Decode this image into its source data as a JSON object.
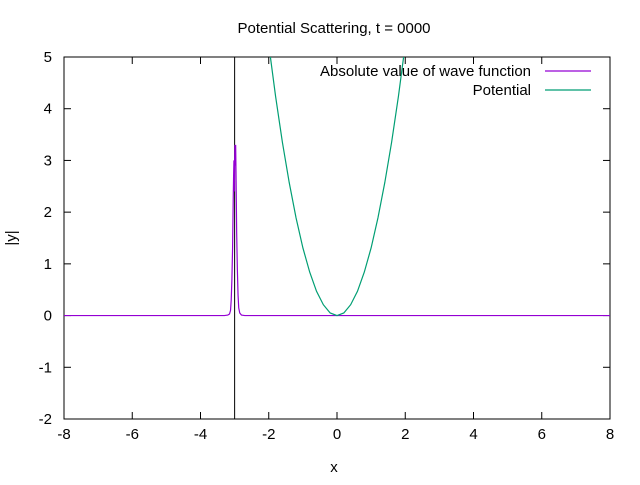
{
  "chart_data": {
    "type": "line",
    "title": "Potential Scattering, t = 0000",
    "xlabel": "x",
    "ylabel": "|y|",
    "xlim": [
      -8,
      8
    ],
    "ylim": [
      -2,
      5
    ],
    "xticks": [
      "-8",
      "-6",
      "-4",
      "-2",
      "0",
      "2",
      "4",
      "6",
      "8"
    ],
    "yticks": [
      "-2",
      "-1",
      "0",
      "1",
      "2",
      "3",
      "4",
      "5"
    ],
    "grid": false,
    "legend_position": "top-right",
    "vertical_marker_x": -3,
    "series": [
      {
        "name": "Absolute value of wave function",
        "color": "#9400d3",
        "x": [
          -8,
          -3.3,
          -3.2,
          -3.15,
          -3.12,
          -3.1,
          -3.08,
          -3.06,
          -3.05,
          -3.04,
          -3.03,
          -3.02,
          -3.01,
          -3.0,
          -2.99,
          -2.98,
          -2.97,
          -2.96,
          -2.95,
          -2.94,
          -2.92,
          -2.9,
          -2.88,
          -2.85,
          -2.8,
          -2.7,
          8
        ],
        "y": [
          0,
          0,
          0.01,
          0.03,
          0.1,
          0.3,
          0.7,
          1.3,
          1.8,
          2.3,
          2.7,
          3.0,
          2.4,
          3.0,
          3.3,
          2.9,
          3.3,
          2.8,
          2.2,
          1.6,
          0.9,
          0.4,
          0.15,
          0.05,
          0.01,
          0,
          0
        ]
      },
      {
        "name": "Potential",
        "color": "#009e73",
        "x": [
          -2.0,
          -1.8,
          -1.6,
          -1.4,
          -1.2,
          -1.0,
          -0.8,
          -0.6,
          -0.4,
          -0.2,
          0.0,
          0.2,
          0.4,
          0.6,
          0.8,
          1.0,
          1.2,
          1.4,
          1.6,
          1.8,
          2.0
        ],
        "y": [
          5.24,
          4.24,
          3.35,
          2.57,
          1.89,
          1.31,
          0.84,
          0.47,
          0.21,
          0.05,
          0.0,
          0.05,
          0.21,
          0.47,
          0.84,
          1.31,
          1.89,
          2.57,
          3.35,
          4.24,
          5.24
        ]
      }
    ]
  }
}
